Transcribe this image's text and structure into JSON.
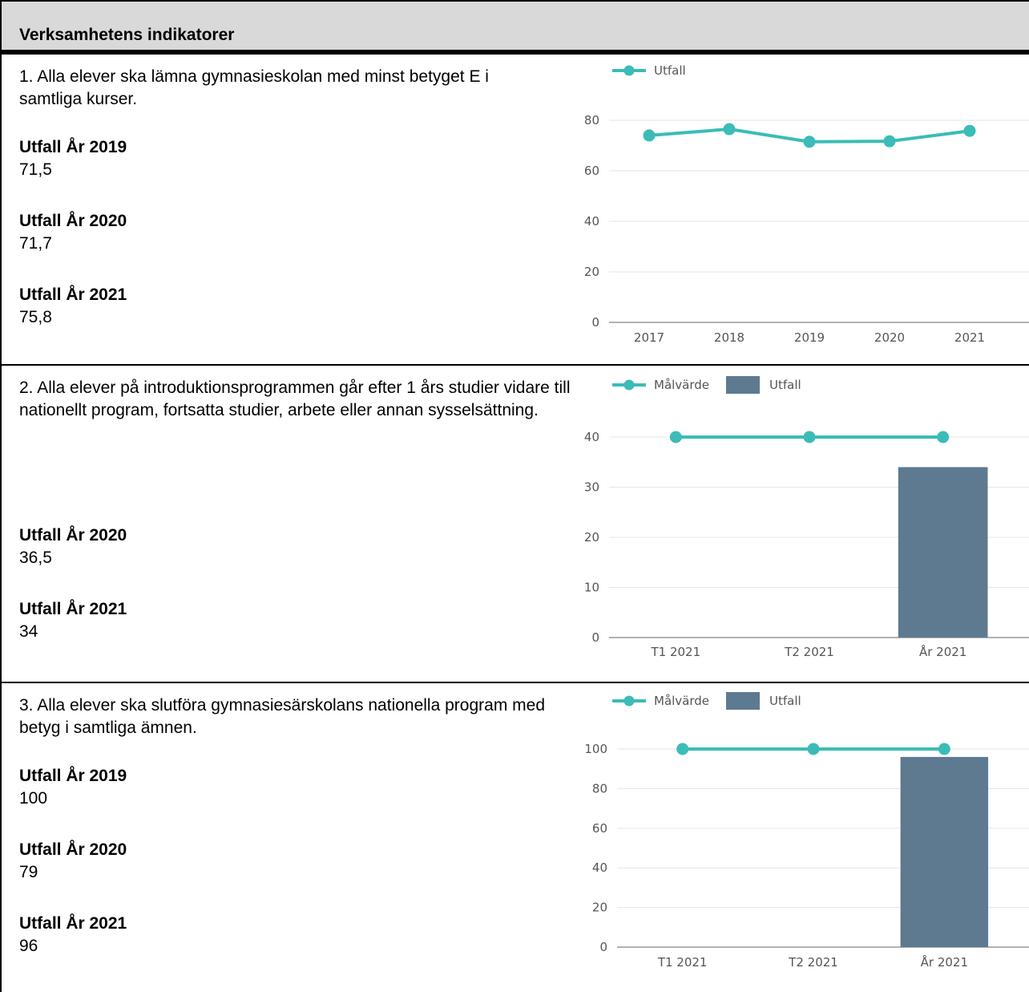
{
  "header": {
    "title": "Verksamhetens indikatorer"
  },
  "indicators": [
    {
      "text": "1. Alla elever ska lämna gymnasieskolan med minst betyget E i samtliga kurser.",
      "stats": [
        {
          "label": "Utfall År 2019",
          "value": "71,5"
        },
        {
          "label": "Utfall År 2020",
          "value": "71,7"
        },
        {
          "label": "Utfall År 2021",
          "value": "75,8"
        }
      ]
    },
    {
      "text": "2. Alla elever på introduktionsprogrammen går efter 1 års studier vidare till nationellt program, fortsatta studier, arbete eller annan sysselsättning.",
      "stats": [
        {
          "label": "Utfall År 2020",
          "value": "36,5"
        },
        {
          "label": "Utfall År 2021",
          "value": "34"
        }
      ]
    },
    {
      "text": "3. Alla elever ska slutföra gymnasiesärskolans nationella program med betyg i samtliga ämnen.",
      "stats": [
        {
          "label": "Utfall År 2019",
          "value": "100"
        },
        {
          "label": "Utfall År 2020",
          "value": "79"
        },
        {
          "label": "Utfall År 2021",
          "value": "96"
        }
      ]
    }
  ],
  "colors": {
    "line": "#3bbcb8",
    "bar": "#5d7a91",
    "grid": "#e6e6e6",
    "axis": "#666666",
    "tick_text": "#555555"
  },
  "chart_data": [
    {
      "type": "line",
      "categories": [
        "2017",
        "2018",
        "2019",
        "2020",
        "2021"
      ],
      "series": [
        {
          "name": "Utfall",
          "kind": "line",
          "values": [
            74,
            76.5,
            71.5,
            71.7,
            75.8
          ]
        }
      ],
      "yticks": [
        0,
        20,
        40,
        60,
        80
      ],
      "ylim": [
        0,
        80
      ],
      "grid": true,
      "legend": "top-left"
    },
    {
      "type": "bar",
      "categories": [
        "T1 2021",
        "T2 2021",
        "År 2021"
      ],
      "series": [
        {
          "name": "Målvärde",
          "kind": "line",
          "values": [
            40,
            40,
            40
          ]
        },
        {
          "name": "Utfall",
          "kind": "bar",
          "values": [
            null,
            null,
            34
          ]
        }
      ],
      "yticks": [
        0,
        10,
        20,
        30,
        40
      ],
      "ylim": [
        0,
        40
      ],
      "grid": true,
      "legend": "top-left"
    },
    {
      "type": "bar",
      "categories": [
        "T1 2021",
        "T2 2021",
        "År 2021"
      ],
      "series": [
        {
          "name": "Målvärde",
          "kind": "line",
          "values": [
            100,
            100,
            100
          ]
        },
        {
          "name": "Utfall",
          "kind": "bar",
          "values": [
            null,
            null,
            96
          ]
        }
      ],
      "yticks": [
        0,
        20,
        40,
        60,
        80,
        100
      ],
      "ylim": [
        0,
        100
      ],
      "grid": true,
      "legend": "top-left"
    }
  ]
}
